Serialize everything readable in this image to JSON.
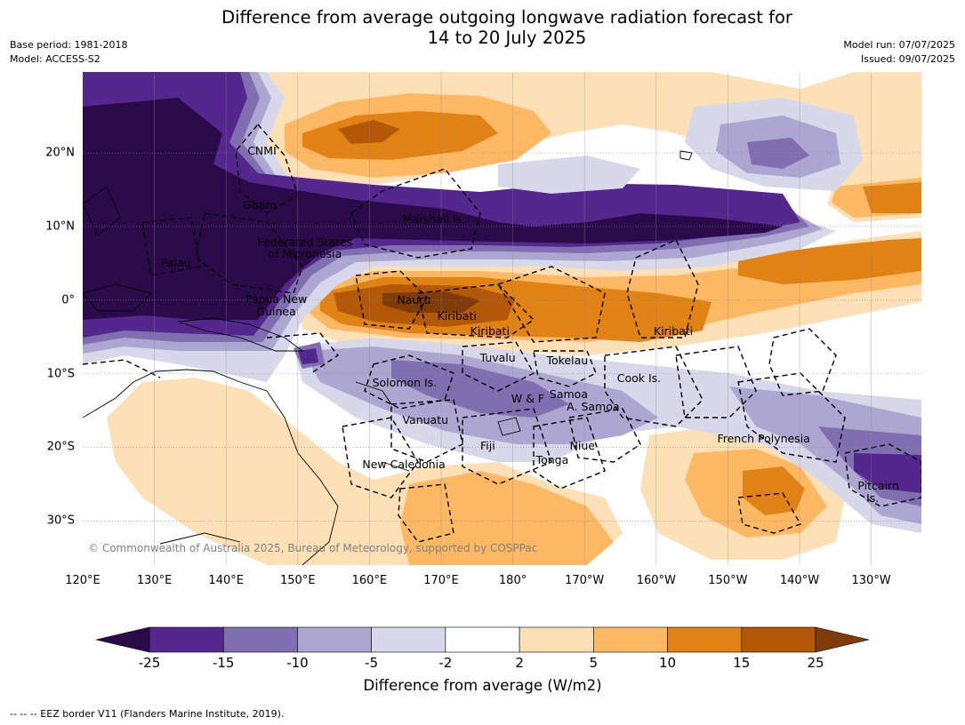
{
  "title_line1": "Difference from average outgoing longwave radiation forecast for",
  "title_line2": "14 to 20 July 2025",
  "base_period": "Base period: 1981-2018",
  "model": "Model: ACCESS-S2",
  "model_run": "Model run: 07/07/2025",
  "issued": "Issued: 09/07/2025",
  "lon_labels": [
    "120°E",
    "130°E",
    "140°E",
    "150°E",
    "160°E",
    "170°E",
    "180°",
    "170°W",
    "160°W",
    "150°W",
    "140°W",
    "130°W"
  ],
  "lat_labels": [
    "20°N",
    "10°N",
    "0°",
    "10°S",
    "20°S",
    "30°S"
  ],
  "places": [
    {
      "name": "CNMI",
      "lon": 145,
      "lat": 20.3
    },
    {
      "name": "Guam",
      "lon": 144.7,
      "lat": 12.9
    },
    {
      "name": "Marshall Is.",
      "lon": 169,
      "lat": 11
    },
    {
      "name": "Federated States",
      "lon": 151,
      "lat": 7.8
    },
    {
      "name": "of Micronesia",
      "lon": 151,
      "lat": 6.2
    },
    {
      "name": "Palau",
      "lon": 133,
      "lat": 5.1
    },
    {
      "name": "Papua New",
      "lon": 147,
      "lat": 0.1
    },
    {
      "name": "Guinea",
      "lon": 147,
      "lat": -1.6
    },
    {
      "name": "Nauru",
      "lon": 166.2,
      "lat": 0
    },
    {
      "name": "Kiribati",
      "lon": 172.2,
      "lat": -2.2
    },
    {
      "name": "Kiribati",
      "lon": 176.8,
      "lat": -4.2
    },
    {
      "name": "Kiribati",
      "lon": -157.6,
      "lat": -4.2
    },
    {
      "name": "Tuvalu",
      "lon": 177.9,
      "lat": -7.9
    },
    {
      "name": "Tokelau",
      "lon": -172.4,
      "lat": -8.2
    },
    {
      "name": "Solomon Is.",
      "lon": 164.9,
      "lat": -11.2
    },
    {
      "name": "Cook Is.",
      "lon": -162.4,
      "lat": -10.6
    },
    {
      "name": "Samoa",
      "lon": -172.2,
      "lat": -12.8
    },
    {
      "name": "W & F",
      "lon": -177.9,
      "lat": -13.4
    },
    {
      "name": "A. Samoa",
      "lon": -168.8,
      "lat": -14.5
    },
    {
      "name": "Vanuatu",
      "lon": 167.8,
      "lat": -16.3
    },
    {
      "name": "French Polynesia",
      "lon": -145,
      "lat": -18.8
    },
    {
      "name": "Fiji",
      "lon": 176.5,
      "lat": -19.8
    },
    {
      "name": "Niue",
      "lon": -170.3,
      "lat": -19.8
    },
    {
      "name": "Tonga",
      "lon": -174.5,
      "lat": -21.8
    },
    {
      "name": "New Caledonia",
      "lon": 164.8,
      "lat": -22.4
    },
    {
      "name": "Pitcairn",
      "lon": -129,
      "lat": -25.3
    },
    {
      "name": "Is.",
      "lon": -129.8,
      "lat": -26.9
    }
  ],
  "copyright": "© Commonwealth of Australia 2025, Bureau of Meteorology, supported by COSPPac",
  "colorbar": {
    "ticks": [
      "-25",
      "-15",
      "-10",
      "-5",
      "-2",
      "2",
      "5",
      "10",
      "15",
      "25"
    ],
    "colors": [
      "#2b0a4a",
      "#54278f",
      "#7f6fb0",
      "#ada6d1",
      "#d8d8eb",
      "#ffffff",
      "#fee0b6",
      "#fdb863",
      "#e08214",
      "#b35806",
      "#7f3b08"
    ],
    "label": "Difference from average (W/m2)"
  },
  "footnote": "--  --  -- EEZ border V11 (Flanders Marine Institute, 2019).",
  "map_extent": {
    "lon_min": 120,
    "lon_max": -123,
    "lat_min": -36,
    "lat_max": 31
  }
}
